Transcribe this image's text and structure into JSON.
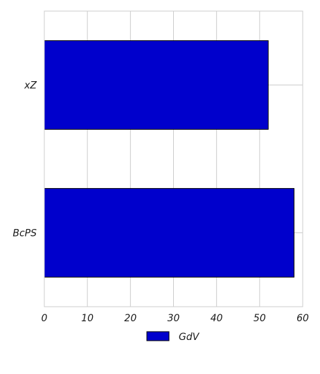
{
  "chart_data": {
    "type": "bar",
    "orientation": "horizontal",
    "categories": [
      "xZ",
      "BcPS"
    ],
    "series": [
      {
        "name": "GdV",
        "values": [
          52,
          58
        ],
        "color": "#0000cc"
      }
    ],
    "xlim": [
      0,
      60
    ],
    "xticks": [
      0,
      10,
      20,
      30,
      40,
      50,
      60
    ],
    "grid": true,
    "legend": "bottom-center",
    "title": "",
    "xlabel": "",
    "ylabel": ""
  }
}
